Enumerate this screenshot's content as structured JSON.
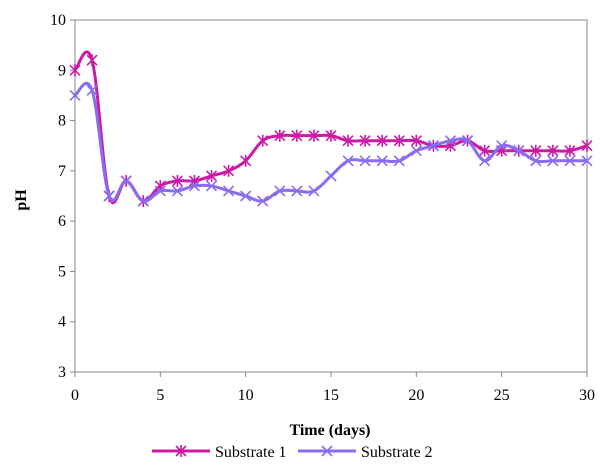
{
  "chart_data": {
    "type": "line",
    "title": "",
    "xlabel": "Time (days)",
    "ylabel": "pH",
    "xlim": [
      0,
      30
    ],
    "ylim": [
      3,
      10
    ],
    "x_ticks": [
      "0",
      "5",
      "10",
      "15",
      "20",
      "25",
      "30"
    ],
    "y_ticks": [
      "3",
      "4",
      "5",
      "6",
      "7",
      "8",
      "9",
      "10"
    ],
    "grid": false,
    "legend_position": "bottom",
    "x": [
      0,
      1,
      2,
      3,
      4,
      5,
      6,
      7,
      8,
      9,
      10,
      11,
      12,
      13,
      14,
      15,
      16,
      17,
      18,
      19,
      20,
      21,
      22,
      23,
      24,
      25,
      26,
      27,
      28,
      29,
      30
    ],
    "series": [
      {
        "name": "Substrate 1",
        "color": "#cc1aa6",
        "marker": "asterisk",
        "values": [
          9.0,
          9.2,
          6.5,
          6.8,
          6.4,
          6.7,
          6.8,
          6.8,
          6.9,
          7.0,
          7.2,
          7.6,
          7.7,
          7.7,
          7.7,
          7.7,
          7.6,
          7.6,
          7.6,
          7.6,
          7.6,
          7.5,
          7.5,
          7.6,
          7.4,
          7.4,
          7.4,
          7.4,
          7.4,
          7.4,
          7.5
        ]
      },
      {
        "name": "Substrate 2",
        "color": "#8a6cf0",
        "marker": "x",
        "values": [
          8.5,
          8.6,
          6.5,
          6.8,
          6.4,
          6.6,
          6.6,
          6.7,
          6.7,
          6.6,
          6.5,
          6.4,
          6.6,
          6.6,
          6.6,
          6.9,
          7.2,
          7.2,
          7.2,
          7.2,
          7.4,
          7.5,
          7.6,
          7.6,
          7.2,
          7.5,
          7.4,
          7.2,
          7.2,
          7.2,
          7.2
        ]
      }
    ]
  }
}
